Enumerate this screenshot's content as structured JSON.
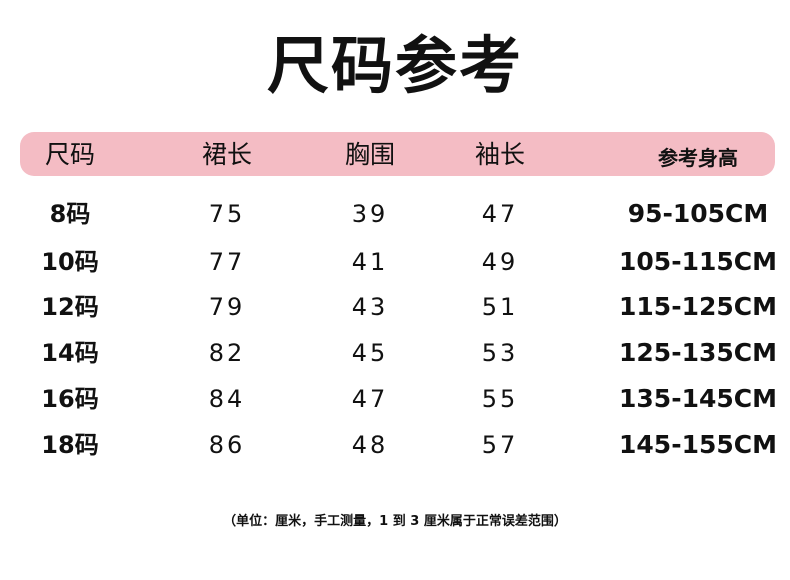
{
  "title": "尺码参考",
  "header": [
    "尺码",
    "裙长",
    "胸围",
    "袖长",
    "参考身高"
  ],
  "colors": {
    "header_bg": "#f4bcc4"
  },
  "rows": [
    [
      "8码",
      "75",
      "39",
      "47",
      "95-105CM"
    ],
    [
      "10码",
      "77",
      "41",
      "49",
      "105-115CM"
    ],
    [
      "12码",
      "79",
      "43",
      "51",
      "115-125CM"
    ],
    [
      "14码",
      "82",
      "45",
      "53",
      "125-135CM"
    ],
    [
      "16码",
      "84",
      "47",
      "55",
      "135-145CM"
    ],
    [
      "18码",
      "86",
      "48",
      "57",
      "145-155CM"
    ]
  ],
  "note": "（单位：厘米，手工测量，1 到 3 厘米属于正常误差范围）"
}
